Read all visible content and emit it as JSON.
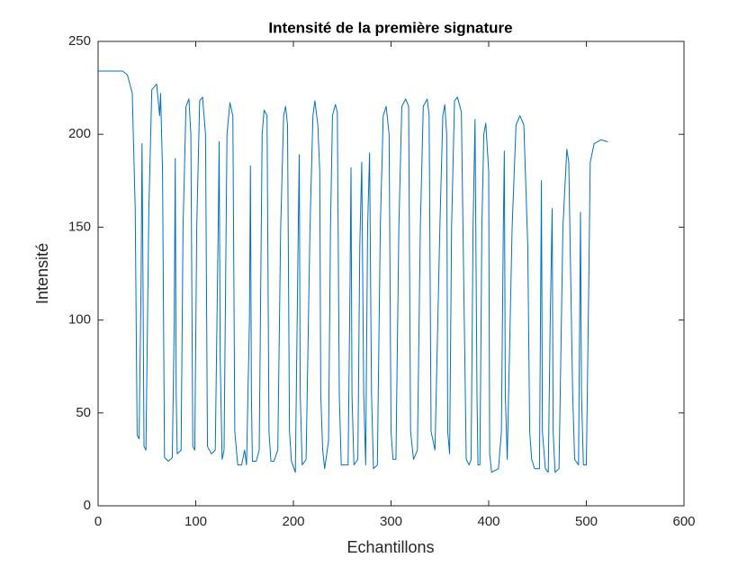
{
  "chart_data": {
    "type": "line",
    "title": "Intensité de la première signature",
    "xlabel": "Echantillons",
    "ylabel": "Intensité",
    "xlim": [
      0,
      600
    ],
    "xticks": [
      0,
      100,
      200,
      300,
      400,
      500,
      600
    ],
    "ylim": [
      0,
      250
    ],
    "yticks": [
      0,
      50,
      100,
      150,
      200,
      250
    ],
    "grid": false,
    "color": "#0072bd",
    "x": [
      0,
      25,
      30,
      35,
      38,
      40,
      42,
      44,
      45,
      46,
      47,
      49,
      52,
      55,
      60,
      63,
      64,
      66,
      68,
      72,
      76,
      78,
      79,
      80,
      81,
      85,
      87,
      90,
      93,
      95,
      97,
      99,
      101,
      104,
      107,
      110,
      112,
      116,
      120,
      123,
      124,
      125,
      127,
      129,
      132,
      135,
      138,
      140,
      143,
      147,
      150,
      152,
      155,
      156,
      157,
      158,
      162,
      165,
      168,
      170,
      173,
      175,
      177,
      180,
      184,
      187,
      190,
      192,
      194,
      196,
      198,
      202,
      205,
      206,
      207,
      209,
      213,
      217,
      220,
      222,
      225,
      227,
      228,
      230,
      232,
      236,
      238,
      240,
      243,
      245,
      247,
      249,
      252,
      256,
      258,
      259,
      260,
      262,
      266,
      268,
      270,
      272,
      274,
      276,
      278,
      280,
      282,
      286,
      289,
      292,
      295,
      298,
      300,
      302,
      305,
      308,
      311,
      315,
      318,
      320,
      323,
      327,
      330,
      333,
      337,
      339,
      341,
      345,
      350,
      353,
      355,
      357,
      358,
      360,
      362,
      365,
      368,
      372,
      375,
      377,
      380,
      382,
      384,
      386,
      388,
      389,
      391,
      393,
      395,
      397,
      400,
      401,
      403,
      410,
      413,
      415,
      416,
      417,
      419,
      424,
      428,
      432,
      436,
      440,
      442,
      444,
      447,
      452,
      454,
      455,
      458,
      461,
      463,
      465,
      466,
      468,
      472,
      476,
      480,
      482,
      486,
      488,
      492,
      494,
      495,
      497,
      500,
      502,
      504,
      508,
      515,
      522
    ],
    "values": [
      234,
      234,
      232,
      222,
      160,
      38,
      36,
      120,
      195,
      120,
      32,
      30,
      160,
      224,
      227,
      210,
      222,
      180,
      26,
      24,
      26,
      100,
      187,
      60,
      28,
      30,
      150,
      215,
      219,
      200,
      32,
      30,
      150,
      218,
      220,
      200,
      32,
      28,
      30,
      150,
      196,
      80,
      25,
      30,
      200,
      217,
      210,
      40,
      22,
      22,
      30,
      22,
      100,
      183,
      60,
      24,
      24,
      30,
      200,
      213,
      210,
      40,
      24,
      24,
      30,
      150,
      210,
      215,
      205,
      40,
      24,
      18,
      150,
      189,
      60,
      22,
      25,
      150,
      210,
      218,
      205,
      180,
      60,
      30,
      20,
      35,
      150,
      210,
      216,
      212,
      60,
      22,
      22,
      22,
      120,
      182,
      60,
      22,
      25,
      140,
      185,
      60,
      22,
      150,
      190,
      60,
      20,
      22,
      150,
      210,
      215,
      200,
      40,
      25,
      25,
      150,
      215,
      219,
      215,
      40,
      25,
      30,
      150,
      215,
      219,
      210,
      40,
      30,
      150,
      210,
      216,
      200,
      40,
      28,
      150,
      218,
      220,
      212,
      100,
      25,
      22,
      25,
      150,
      208,
      60,
      22,
      22,
      150,
      200,
      206,
      180,
      28,
      18,
      20,
      40,
      150,
      191,
      60,
      25,
      150,
      205,
      210,
      205,
      140,
      40,
      25,
      20,
      20,
      175,
      40,
      20,
      18,
      100,
      160,
      40,
      18,
      20,
      150,
      192,
      185,
      60,
      25,
      22,
      158,
      60,
      22,
      22,
      100,
      185,
      195,
      197,
      196
    ]
  }
}
